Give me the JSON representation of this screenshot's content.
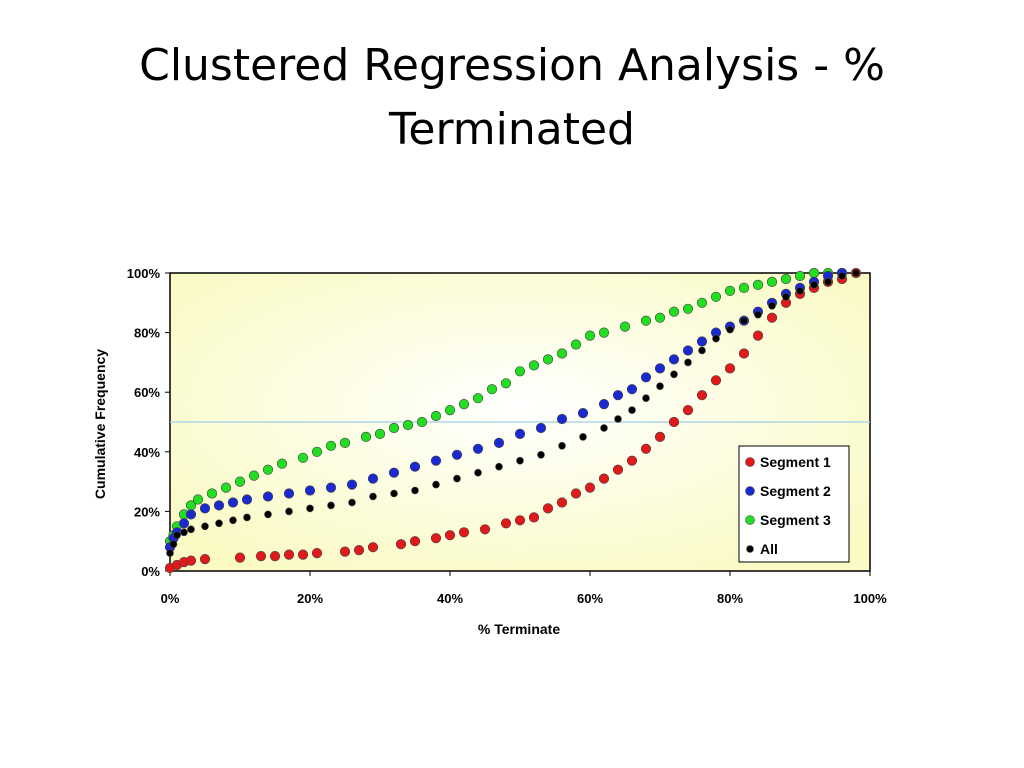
{
  "slide": {
    "title": "Clustered Regression Analysis - % Terminated"
  },
  "chart_data": {
    "type": "scatter",
    "title": "",
    "xlabel": "% Terminate",
    "ylabel": "Cumulative Frequency",
    "xlim": [
      0,
      1
    ],
    "ylim": [
      0,
      1
    ],
    "x_ticks": [
      "0%",
      "20%",
      "40%",
      "60%",
      "80%",
      "100%"
    ],
    "y_ticks": [
      "0%",
      "20%",
      "40%",
      "60%",
      "80%",
      "100%"
    ],
    "reference_line": {
      "y": 0.5,
      "color": "#9fcfe6"
    },
    "plot_background": "radial gradient, white center to pale yellow",
    "grid": false,
    "legend": {
      "position": "bottom-right"
    },
    "series": [
      {
        "name": "Segment 1",
        "color": "#e01a1a",
        "x": [
          0.0,
          0.01,
          0.02,
          0.03,
          0.05,
          0.1,
          0.13,
          0.15,
          0.17,
          0.19,
          0.21,
          0.25,
          0.27,
          0.29,
          0.33,
          0.35,
          0.38,
          0.4,
          0.42,
          0.45,
          0.48,
          0.5,
          0.52,
          0.54,
          0.56,
          0.58,
          0.6,
          0.62,
          0.64,
          0.66,
          0.68,
          0.7,
          0.72,
          0.74,
          0.76,
          0.78,
          0.8,
          0.82,
          0.84,
          0.86,
          0.88,
          0.9,
          0.92,
          0.94,
          0.96,
          0.98
        ],
        "y": [
          0.01,
          0.02,
          0.03,
          0.035,
          0.04,
          0.045,
          0.05,
          0.05,
          0.055,
          0.055,
          0.06,
          0.065,
          0.07,
          0.08,
          0.09,
          0.1,
          0.11,
          0.12,
          0.13,
          0.14,
          0.16,
          0.17,
          0.18,
          0.21,
          0.23,
          0.26,
          0.28,
          0.31,
          0.34,
          0.37,
          0.41,
          0.45,
          0.5,
          0.54,
          0.59,
          0.64,
          0.68,
          0.73,
          0.79,
          0.85,
          0.9,
          0.93,
          0.95,
          0.97,
          0.98,
          1.0
        ]
      },
      {
        "name": "Segment 2",
        "color": "#1a2ad0",
        "x": [
          0.0,
          0.005,
          0.01,
          0.02,
          0.03,
          0.05,
          0.07,
          0.09,
          0.11,
          0.14,
          0.17,
          0.2,
          0.23,
          0.26,
          0.29,
          0.32,
          0.35,
          0.38,
          0.41,
          0.44,
          0.47,
          0.5,
          0.53,
          0.56,
          0.59,
          0.62,
          0.64,
          0.66,
          0.68,
          0.7,
          0.72,
          0.74,
          0.76,
          0.78,
          0.8,
          0.82,
          0.84,
          0.86,
          0.88,
          0.9,
          0.92,
          0.94,
          0.96
        ],
        "y": [
          0.08,
          0.11,
          0.13,
          0.16,
          0.19,
          0.21,
          0.22,
          0.23,
          0.24,
          0.25,
          0.26,
          0.27,
          0.28,
          0.29,
          0.31,
          0.33,
          0.35,
          0.37,
          0.39,
          0.41,
          0.43,
          0.46,
          0.48,
          0.51,
          0.53,
          0.56,
          0.59,
          0.61,
          0.65,
          0.68,
          0.71,
          0.74,
          0.77,
          0.8,
          0.82,
          0.84,
          0.87,
          0.9,
          0.93,
          0.95,
          0.97,
          0.99,
          1.0
        ]
      },
      {
        "name": "Segment 3",
        "color": "#22dd22",
        "x": [
          0.0,
          0.005,
          0.01,
          0.02,
          0.03,
          0.04,
          0.06,
          0.08,
          0.1,
          0.12,
          0.14,
          0.16,
          0.19,
          0.21,
          0.23,
          0.25,
          0.28,
          0.3,
          0.32,
          0.34,
          0.36,
          0.38,
          0.4,
          0.42,
          0.44,
          0.46,
          0.48,
          0.5,
          0.52,
          0.54,
          0.56,
          0.58,
          0.6,
          0.62,
          0.65,
          0.68,
          0.7,
          0.72,
          0.74,
          0.76,
          0.78,
          0.8,
          0.82,
          0.84,
          0.86,
          0.88,
          0.9,
          0.92,
          0.94,
          0.96
        ],
        "y": [
          0.1,
          0.12,
          0.15,
          0.19,
          0.22,
          0.24,
          0.26,
          0.28,
          0.3,
          0.32,
          0.34,
          0.36,
          0.38,
          0.4,
          0.42,
          0.43,
          0.45,
          0.46,
          0.48,
          0.49,
          0.5,
          0.52,
          0.54,
          0.56,
          0.58,
          0.61,
          0.63,
          0.67,
          0.69,
          0.71,
          0.73,
          0.76,
          0.79,
          0.8,
          0.82,
          0.84,
          0.85,
          0.87,
          0.88,
          0.9,
          0.92,
          0.94,
          0.95,
          0.96,
          0.97,
          0.98,
          0.99,
          1.0,
          1.0,
          1.0
        ]
      },
      {
        "name": "All",
        "color": "#000000",
        "x": [
          0.0,
          0.005,
          0.01,
          0.02,
          0.03,
          0.05,
          0.07,
          0.09,
          0.11,
          0.14,
          0.17,
          0.2,
          0.23,
          0.26,
          0.29,
          0.32,
          0.35,
          0.38,
          0.41,
          0.44,
          0.47,
          0.5,
          0.53,
          0.56,
          0.59,
          0.62,
          0.64,
          0.66,
          0.68,
          0.7,
          0.72,
          0.74,
          0.76,
          0.78,
          0.8,
          0.82,
          0.84,
          0.86,
          0.88,
          0.9,
          0.92,
          0.94,
          0.96,
          0.98
        ],
        "y": [
          0.06,
          0.09,
          0.12,
          0.13,
          0.14,
          0.15,
          0.16,
          0.17,
          0.18,
          0.19,
          0.2,
          0.21,
          0.22,
          0.23,
          0.25,
          0.26,
          0.27,
          0.29,
          0.31,
          0.33,
          0.35,
          0.37,
          0.39,
          0.42,
          0.45,
          0.48,
          0.51,
          0.54,
          0.58,
          0.62,
          0.66,
          0.7,
          0.74,
          0.78,
          0.81,
          0.84,
          0.86,
          0.89,
          0.92,
          0.94,
          0.96,
          0.97,
          0.99,
          1.0
        ]
      }
    ]
  }
}
